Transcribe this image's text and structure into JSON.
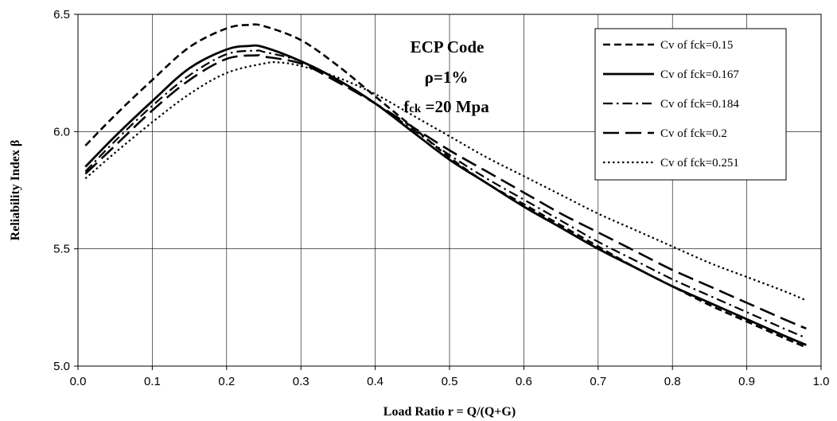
{
  "chart_data": {
    "type": "line",
    "xlabel": "Load Ratio r = Q/(Q+G)",
    "ylabel": "Reliability Index  β",
    "xlim": [
      0.0,
      1.0
    ],
    "ylim": [
      5.0,
      6.5
    ],
    "xticks": [
      "0.0",
      "0.1",
      "0.2",
      "0.3",
      "0.4",
      "0.5",
      "0.6",
      "0.7",
      "0.8",
      "0.9",
      "1.0"
    ],
    "yticks": [
      "5.0",
      "5.5",
      "6.0",
      "6.5"
    ],
    "grid": true,
    "legend_position": "top-right",
    "annotation": {
      "line1": "ECP Code",
      "line2": "ρ=1%",
      "line3_main": "f",
      "line3_sub": "ck",
      "line3_rest": " =20 Mpa"
    },
    "series": [
      {
        "name": "Cv of fck=0.15",
        "dash": "dashed",
        "x": [
          0.01,
          0.05,
          0.1,
          0.15,
          0.2,
          0.23,
          0.25,
          0.3,
          0.35,
          0.4,
          0.45,
          0.5,
          0.55,
          0.6,
          0.65,
          0.7,
          0.75,
          0.8,
          0.85,
          0.9,
          0.95,
          0.98
        ],
        "y": [
          5.94,
          6.07,
          6.22,
          6.36,
          6.44,
          6.455,
          6.45,
          6.39,
          6.28,
          6.15,
          6.02,
          5.89,
          5.78,
          5.69,
          5.6,
          5.51,
          5.42,
          5.34,
          5.26,
          5.19,
          5.12,
          5.08
        ]
      },
      {
        "name": "Cv of fck=0.167",
        "dash": "solid",
        "x": [
          0.01,
          0.05,
          0.1,
          0.15,
          0.2,
          0.23,
          0.25,
          0.3,
          0.35,
          0.4,
          0.45,
          0.5,
          0.55,
          0.6,
          0.65,
          0.7,
          0.75,
          0.8,
          0.85,
          0.9,
          0.95,
          0.98
        ],
        "y": [
          5.85,
          5.98,
          6.13,
          6.27,
          6.35,
          6.365,
          6.36,
          6.3,
          6.22,
          6.12,
          6.0,
          5.88,
          5.78,
          5.68,
          5.59,
          5.5,
          5.42,
          5.34,
          5.27,
          5.2,
          5.13,
          5.09
        ]
      },
      {
        "name": "Cv of fck=0.184",
        "dash": "dash-dot",
        "x": [
          0.01,
          0.05,
          0.1,
          0.15,
          0.2,
          0.24,
          0.25,
          0.3,
          0.35,
          0.4,
          0.45,
          0.5,
          0.55,
          0.6,
          0.65,
          0.7,
          0.75,
          0.8,
          0.85,
          0.9,
          0.95,
          0.98
        ],
        "y": [
          5.83,
          5.96,
          6.11,
          6.24,
          6.33,
          6.345,
          6.34,
          6.3,
          6.22,
          6.12,
          6.01,
          5.9,
          5.8,
          5.71,
          5.62,
          5.53,
          5.45,
          5.37,
          5.3,
          5.23,
          5.16,
          5.12
        ]
      },
      {
        "name": "Cv of fck=0.2",
        "dash": "long-dash",
        "x": [
          0.01,
          0.05,
          0.1,
          0.15,
          0.2,
          0.24,
          0.25,
          0.3,
          0.35,
          0.4,
          0.45,
          0.5,
          0.55,
          0.6,
          0.65,
          0.7,
          0.75,
          0.8,
          0.85,
          0.9,
          0.95,
          0.98
        ],
        "y": [
          5.82,
          5.94,
          6.09,
          6.22,
          6.31,
          6.325,
          6.32,
          6.29,
          6.21,
          6.12,
          6.02,
          5.92,
          5.83,
          5.74,
          5.65,
          5.57,
          5.49,
          5.41,
          5.34,
          5.27,
          5.2,
          5.16
        ]
      },
      {
        "name": "Cv of fck=0.251",
        "dash": "dotted",
        "x": [
          0.01,
          0.05,
          0.1,
          0.15,
          0.2,
          0.25,
          0.27,
          0.3,
          0.35,
          0.4,
          0.45,
          0.5,
          0.55,
          0.6,
          0.65,
          0.7,
          0.75,
          0.8,
          0.85,
          0.9,
          0.95,
          0.98
        ],
        "y": [
          5.8,
          5.91,
          6.04,
          6.16,
          6.25,
          6.29,
          6.295,
          6.28,
          6.23,
          6.16,
          6.07,
          5.98,
          5.89,
          5.81,
          5.73,
          5.65,
          5.58,
          5.51,
          5.44,
          5.38,
          5.32,
          5.28
        ]
      }
    ]
  }
}
